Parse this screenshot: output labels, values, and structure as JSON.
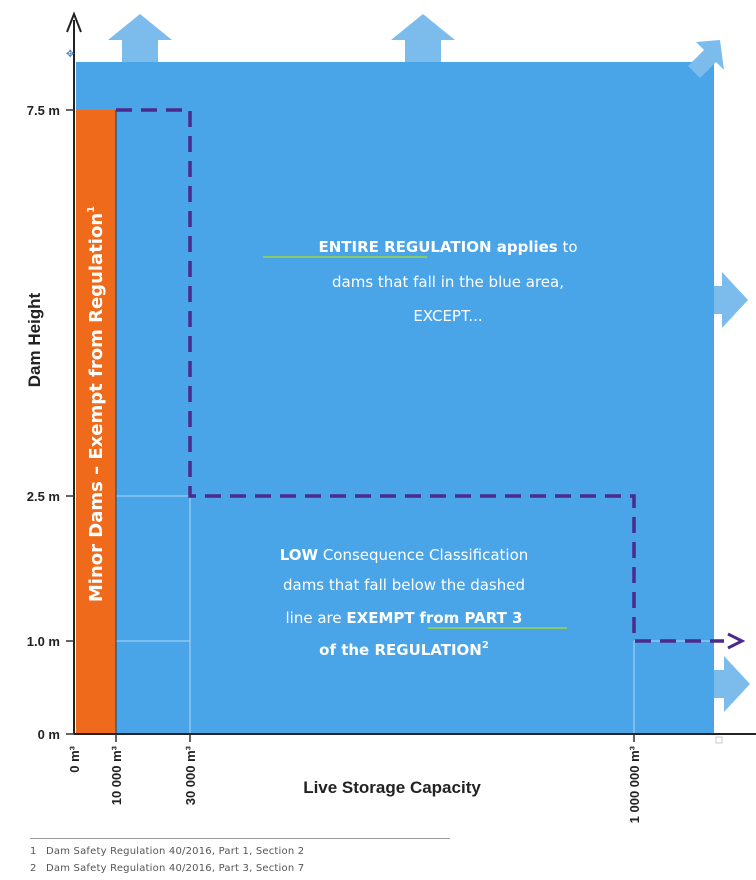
{
  "axes": {
    "y_label": "Dam Height",
    "x_label": "Live Storage Capacity",
    "y_ticks": [
      "7.5 m",
      "2.5 m",
      "1.0 m",
      "0 m"
    ],
    "x_ticks": [
      "0 m³",
      "10 000 m³",
      "30 000 m³",
      "1 000 000 m³"
    ]
  },
  "minor_band": {
    "label": "Minor Dams – Exempt from Regulation",
    "sup": "1"
  },
  "entire": {
    "line1_bold": "ENTIRE REGULATION",
    "line1_bold2": " applies",
    "line1_rest": " to",
    "line2": "dams that fall in the blue area,",
    "line3": "EXCEPT..."
  },
  "low": {
    "line1_bold": "LOW",
    "line1_rest": " Consequence Classification",
    "line2": "dams that fall below the dashed",
    "line3_pre": "line are ",
    "line3_bold": "EXEMPT",
    "line3_bold_u": "from PART 3",
    "line4": "of the REGULATION",
    "line4_sup": "2"
  },
  "footnotes": [
    {
      "num": "1",
      "text": "Dam Safety Regulation 40/2016, Part 1, Section 2"
    },
    {
      "num": "2",
      "text": "Dam Safety Regulation 40/2016, Part 3, Section 7"
    }
  ],
  "colors": {
    "blue_area": "#4aa4e8",
    "arrow": "#7bbcec",
    "minor_band": "#ef6a1a",
    "dashed_line": "#4b2a8c",
    "underline": "#9bd83a"
  }
}
